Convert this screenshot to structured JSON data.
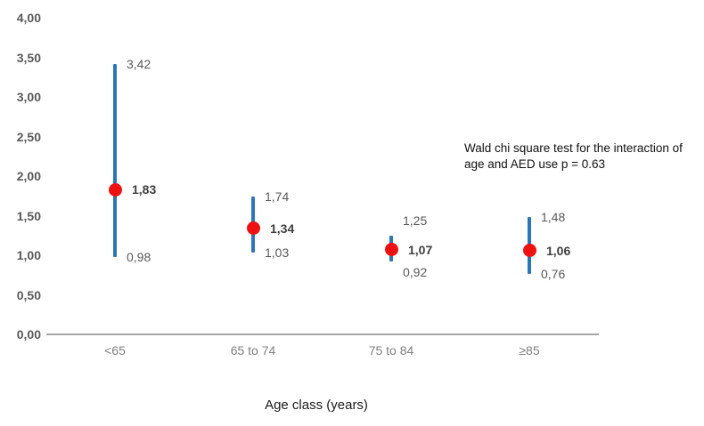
{
  "chart_data": {
    "type": "scatter",
    "title": "",
    "xlabel": "Age class (years)",
    "categories": [
      "<65",
      "65 to 74",
      "75 to 84",
      "≥85"
    ],
    "series": [
      {
        "points": [
          {
            "category": "<65",
            "estimate": 1.83,
            "ci_low": 0.98,
            "ci_high": 3.42,
            "estimate_label": "1,83",
            "ci_low_label": "0,98",
            "ci_high_label": "3,42"
          },
          {
            "category": "65 to 74",
            "estimate": 1.34,
            "ci_low": 1.03,
            "ci_high": 1.74,
            "estimate_label": "1,34",
            "ci_low_label": "1,03",
            "ci_high_label": "1,74"
          },
          {
            "category": "75 to 84",
            "estimate": 1.07,
            "ci_low": 0.92,
            "ci_high": 1.25,
            "estimate_label": "1,07",
            "ci_low_label": "0,92",
            "ci_high_label": "1,25"
          },
          {
            "category": "≥85",
            "estimate": 1.06,
            "ci_low": 0.76,
            "ci_high": 1.48,
            "estimate_label": "1,06",
            "ci_low_label": "0,76",
            "ci_high_label": "1,48"
          }
        ]
      }
    ],
    "ylim": [
      0,
      4
    ],
    "ytick_step": 0.5,
    "ytick_labels": [
      "0,00",
      "0,50",
      "1,00",
      "1,50",
      "2,00",
      "2,50",
      "3,00",
      "3,50",
      "4,00"
    ],
    "grid": false,
    "legend": false,
    "annotation_lines": [
      "Wald chi square test for the interaction of",
      "age and AED use p = 0.63"
    ],
    "colors": {
      "marker": "#ee1111",
      "errorbar": "#2e75b6",
      "axis_line": "#a6a6a6"
    }
  }
}
